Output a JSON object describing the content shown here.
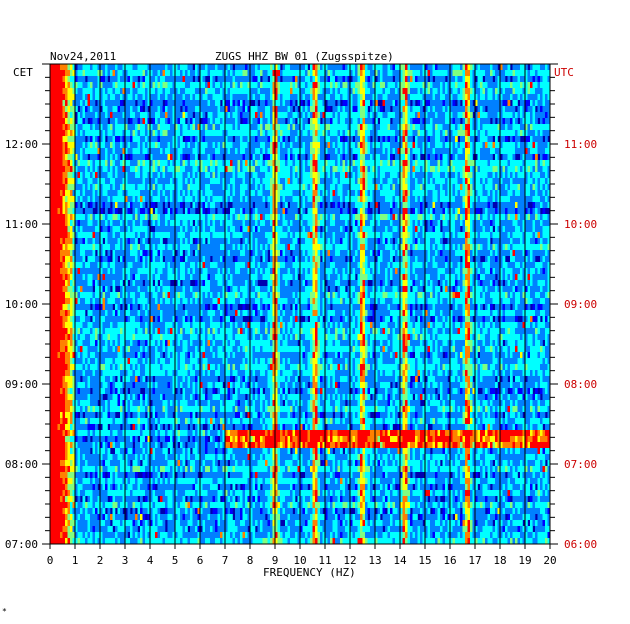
{
  "chart_data": {
    "type": "heatmap",
    "date": "Nov24,2011",
    "station": "ZUGS HHZ BW 01 (Zugsspitze)",
    "xlabel": "FREQUENCY (HZ)",
    "xlim": [
      0,
      20
    ],
    "x_ticks": [
      "0",
      "1",
      "2",
      "3",
      "4",
      "5",
      "6",
      "7",
      "8",
      "9",
      "10",
      "11",
      "12",
      "13",
      "14",
      "15",
      "16",
      "17",
      "18",
      "19",
      "20"
    ],
    "left_axis": {
      "label": "CET",
      "ticks": [
        "12:00",
        "11:00",
        "10:00",
        "09:00",
        "08:00",
        "07:00"
      ],
      "color": "#000000"
    },
    "right_axis": {
      "label": "UTC",
      "ticks": [
        "11:00",
        "10:00",
        "09:00",
        "08:00",
        "07:00",
        "06:00"
      ],
      "color": "#cc0000"
    },
    "time_range_cet": [
      "07:00",
      "13:00"
    ],
    "grid": true,
    "colormap": [
      "#00007f",
      "#0000ff",
      "#0080ff",
      "#00ffff",
      "#80ff80",
      "#ffff00",
      "#ff8000",
      "#ff0000"
    ],
    "features": {
      "low_frequency_energy_hz": [
        0,
        1
      ],
      "persistent_lines_hz": [
        9.0,
        10.6,
        12.5,
        14.2,
        16.7
      ],
      "broadband_burst_cet": "08:30"
    }
  },
  "footer_mark": "*"
}
